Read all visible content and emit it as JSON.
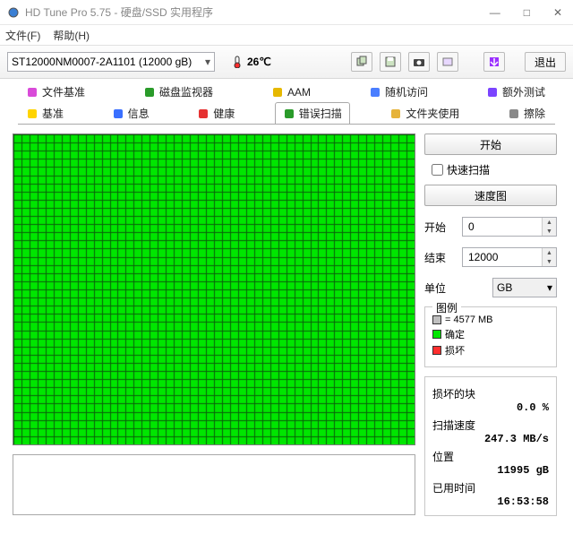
{
  "window": {
    "title": "HD Tune Pro 5.75 - 硬盘/SSD 实用程序",
    "min": "—",
    "max": "□",
    "close": "✕"
  },
  "menu": {
    "file": "文件(F)",
    "help": "帮助(H)"
  },
  "toolbar": {
    "drive": "ST12000NM0007-2A1101 (12000 gB)",
    "temp": "26℃",
    "exit": "退出"
  },
  "tabs": {
    "row1": [
      {
        "label": "文件基准",
        "icon_color": "#d94bd9"
      },
      {
        "label": "磁盘监视器",
        "icon_color": "#2a9b2a"
      },
      {
        "label": "AAM",
        "icon_color": "#e6b800"
      },
      {
        "label": "随机访问",
        "icon_color": "#4a7eff"
      },
      {
        "label": "额外测试",
        "icon_color": "#7b44ff"
      }
    ],
    "row2": [
      {
        "label": "基准",
        "icon_color": "#ffd400"
      },
      {
        "label": "信息",
        "icon_color": "#3a70ff"
      },
      {
        "label": "健康",
        "icon_color": "#e63232"
      },
      {
        "label": "错误扫描",
        "icon_color": "#2a9b2a",
        "active": true
      },
      {
        "label": "文件夹使用",
        "icon_color": "#e6b33a"
      },
      {
        "label": "擦除",
        "icon_color": "#888888"
      }
    ]
  },
  "grid": {
    "cols": 50,
    "rows": 38,
    "fill_color": "#00e600",
    "line_color": "#0b5f0b",
    "bg": "#ffffff"
  },
  "panel": {
    "start_btn": "开始",
    "quick_scan": "快速扫描",
    "speed_map_btn": "速度图",
    "start_label": "开始",
    "start_val": "0",
    "end_label": "结束",
    "end_val": "12000",
    "unit_label": "单位",
    "unit_val": "GB",
    "legend_title": "图例",
    "legend_block": "= 4577 MB",
    "legend_ok": "确定",
    "legend_bad": "损坏",
    "damaged_title": "损坏的块",
    "damaged_val": "0.0 %",
    "speed_title": "扫描速度",
    "speed_val": "247.3 MB/s",
    "pos_title": "位置",
    "pos_val": "11995 gB",
    "elapsed_title": "已用时间",
    "elapsed_val": "16:53:58"
  },
  "colors": {
    "ok_block": "#00e600",
    "bad_block": "#ff2e2e",
    "gray_block": "#bfbfbf",
    "accent_purple": "#9b30ff"
  }
}
